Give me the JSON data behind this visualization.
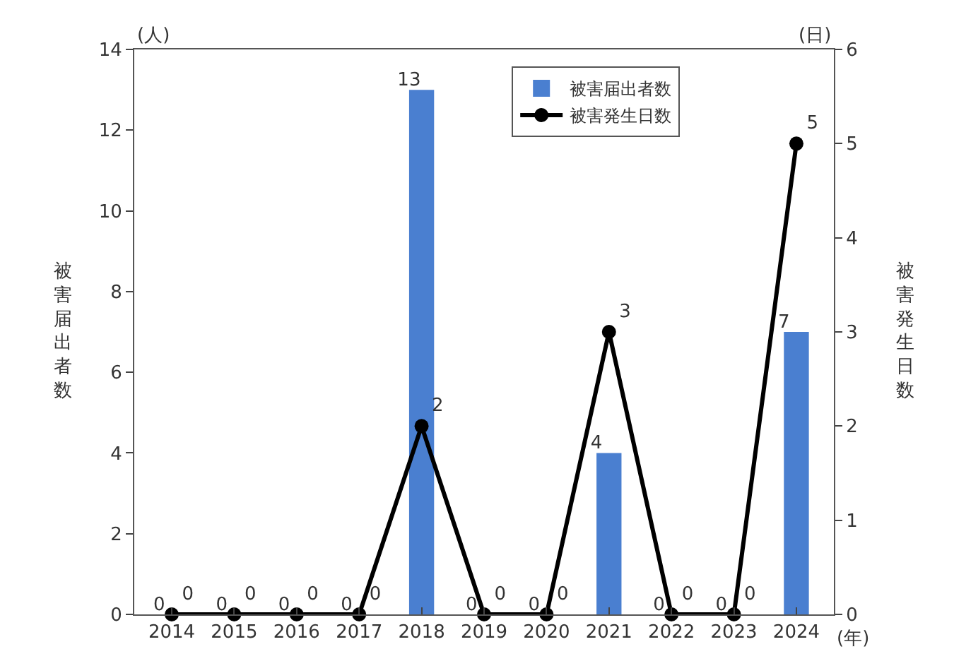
{
  "chart_data": {
    "type": "bar",
    "ylabel": "被害届出者数",
    "y2label": "被害発生日数",
    "categories": [
      "2014",
      "2015",
      "2016",
      "2017",
      "2018",
      "2019",
      "2020",
      "2021",
      "2022",
      "2023",
      "2024"
    ],
    "series": [
      {
        "name": "被害届出者数",
        "color": "#4a7fd0",
        "values": [
          0,
          0,
          0,
          0,
          13,
          0,
          0,
          4,
          0,
          0,
          7
        ]
      },
      {
        "name": "被害発生日数",
        "type": "line",
        "axis": "y2",
        "color": "#000000",
        "values": [
          0,
          0,
          0,
          0,
          2,
          0,
          0,
          3,
          0,
          0,
          5
        ]
      }
    ],
    "ylim": [
      0,
      14
    ],
    "yticks": [
      0,
      2,
      4,
      6,
      8,
      10,
      12,
      14
    ],
    "y2lim": [
      0,
      6
    ],
    "y2ticks": [
      0,
      1,
      2,
      3,
      4,
      5,
      6
    ],
    "annotations": [
      "(人)",
      "(日)",
      "(年)"
    ],
    "data_labels": true,
    "legend": "top right",
    "marker": "circle",
    "line_style": "solid"
  }
}
